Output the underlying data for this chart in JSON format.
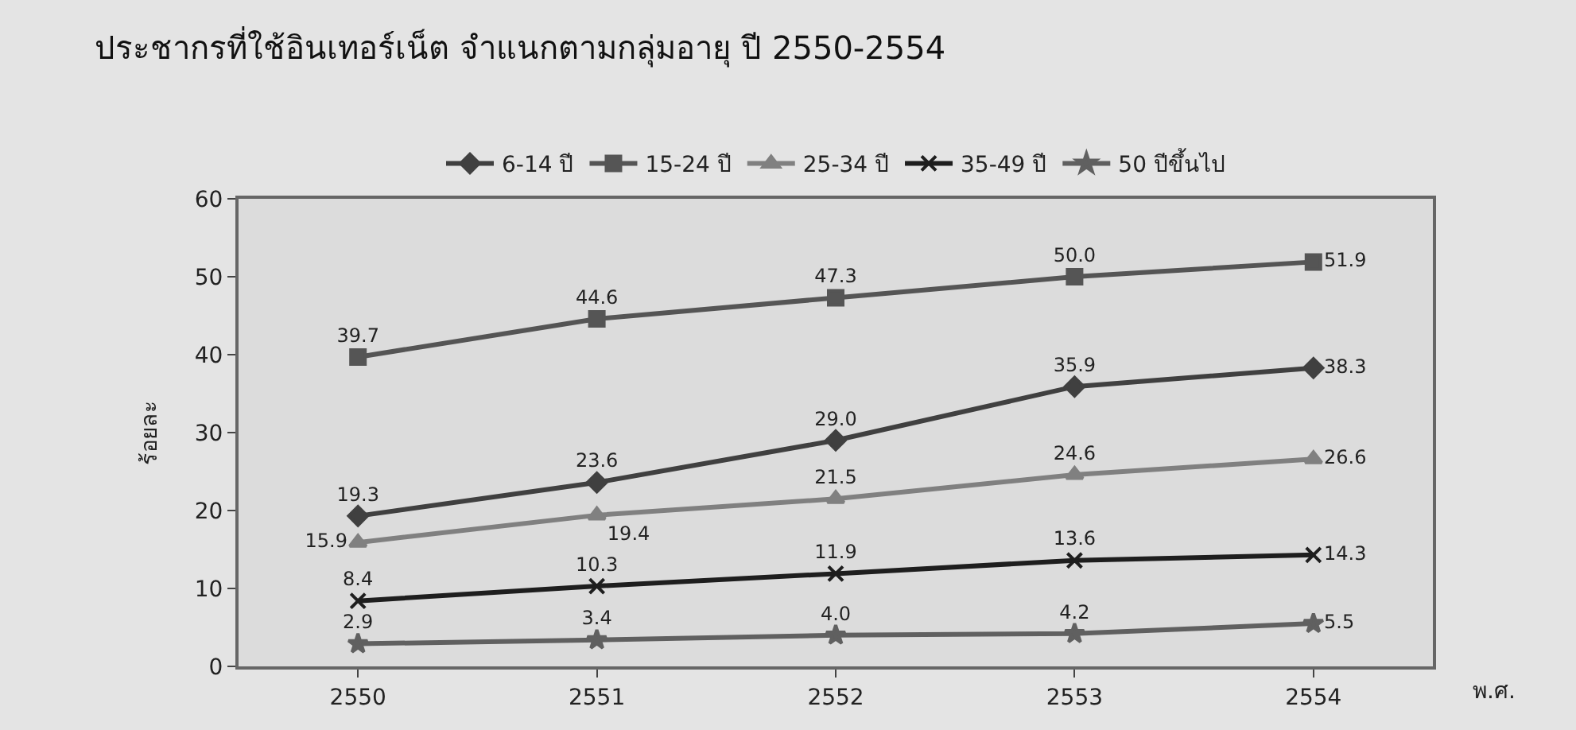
{
  "chart_data": {
    "type": "line",
    "title": "ประชากรที่ใช้อินเทอร์เน็ต จำแนกตามกลุ่มอายุ ปี 2550-2554",
    "xlabel": "พ.ศ.",
    "ylabel": "ร้อยละ",
    "categories": [
      "2550",
      "2551",
      "2552",
      "2553",
      "2554"
    ],
    "ylim": [
      0,
      60
    ],
    "yticks": [
      0,
      10,
      20,
      30,
      40,
      50,
      60
    ],
    "grid": false,
    "legend": "top",
    "line_style": "solid",
    "series": [
      {
        "name": "6-14 ปี",
        "color": "#404040",
        "marker": "diamond",
        "values": [
          19.3,
          23.6,
          29.0,
          35.9,
          38.3
        ],
        "value_labels": [
          "19.3",
          "23.6",
          "29.0",
          "35.9",
          "38.3"
        ]
      },
      {
        "name": "15-24 ปี",
        "color": "#555555",
        "marker": "square",
        "values": [
          39.7,
          44.6,
          47.3,
          50.0,
          51.9
        ],
        "value_labels": [
          "39.7",
          "44.6",
          "47.3",
          "50.0",
          "51.9"
        ]
      },
      {
        "name": "25-34 ปี",
        "color": "#808080",
        "marker": "triangle",
        "values": [
          15.9,
          19.4,
          21.5,
          24.6,
          26.6
        ],
        "value_labels": [
          "15.9",
          "19.4",
          "21.5",
          "24.6",
          "26.6"
        ]
      },
      {
        "name": "35-49 ปี",
        "color": "#1e1e1e",
        "marker": "cross",
        "values": [
          8.4,
          10.3,
          11.9,
          13.6,
          14.3
        ],
        "value_labels": [
          "8.4",
          "10.3",
          "11.9",
          "13.6",
          "14.3"
        ]
      },
      {
        "name": "50 ปีขึ้นไป",
        "color": "#606060",
        "marker": "star",
        "values": [
          2.9,
          3.4,
          4.0,
          4.2,
          5.5
        ],
        "value_labels": [
          "2.9",
          "3.4",
          "4.0",
          "4.2",
          "5.5"
        ]
      }
    ]
  }
}
